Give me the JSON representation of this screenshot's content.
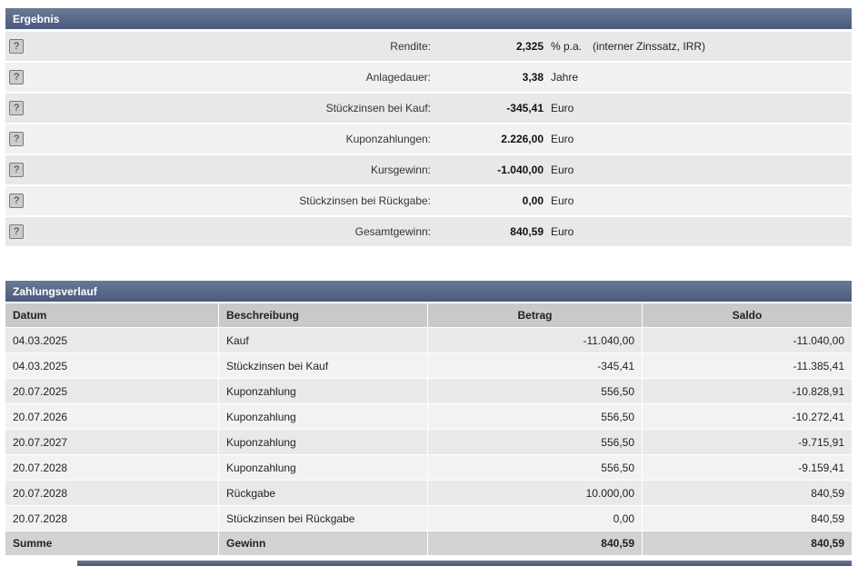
{
  "colors": {
    "header_bg": "#4a5a7e",
    "header_bg_light": "#6a7996",
    "row_dark": "#e8e8e8",
    "row_light": "#f2f2f2",
    "table_header_bg": "#c9c9c9",
    "sum_row_bg": "#d2d2d2"
  },
  "ergebnis": {
    "title": "Ergebnis",
    "help_label": "?",
    "rows": [
      {
        "label": "Rendite:",
        "value": "2,325",
        "unit": "% p.a.",
        "note": "(interner Zinssatz, IRR)"
      },
      {
        "label": "Anlagedauer:",
        "value": "3,38",
        "unit": "Jahre",
        "note": ""
      },
      {
        "label": "Stückzinsen bei Kauf:",
        "value": "-345,41",
        "unit": "Euro",
        "note": ""
      },
      {
        "label": "Kuponzahlungen:",
        "value": "2.226,00",
        "unit": "Euro",
        "note": ""
      },
      {
        "label": "Kursgewinn:",
        "value": "-1.040,00",
        "unit": "Euro",
        "note": ""
      },
      {
        "label": "Stückzinsen bei Rückgabe:",
        "value": "0,00",
        "unit": "Euro",
        "note": ""
      },
      {
        "label": "Gesamtgewinn:",
        "value": "840,59",
        "unit": "Euro",
        "note": ""
      }
    ]
  },
  "zahlungsverlauf": {
    "title": "Zahlungsverlauf",
    "columns": [
      "Datum",
      "Beschreibung",
      "Betrag",
      "Saldo"
    ],
    "rows": [
      [
        "04.03.2025",
        "Kauf",
        "-11.040,00",
        "-11.040,00"
      ],
      [
        "04.03.2025",
        "Stückzinsen bei Kauf",
        "-345,41",
        "-11.385,41"
      ],
      [
        "20.07.2025",
        "Kuponzahlung",
        "556,50",
        "-10.828,91"
      ],
      [
        "20.07.2026",
        "Kuponzahlung",
        "556,50",
        "-10.272,41"
      ],
      [
        "20.07.2027",
        "Kuponzahlung",
        "556,50",
        "-9.715,91"
      ],
      [
        "20.07.2028",
        "Kuponzahlung",
        "556,50",
        "-9.159,41"
      ],
      [
        "20.07.2028",
        "Rückgabe",
        "10.000,00",
        "840,59"
      ],
      [
        "20.07.2028",
        "Stückzinsen bei Rückgabe",
        "0,00",
        "840,59"
      ]
    ],
    "summary": [
      "Summe",
      "Gewinn",
      "840,59",
      "840,59"
    ]
  }
}
